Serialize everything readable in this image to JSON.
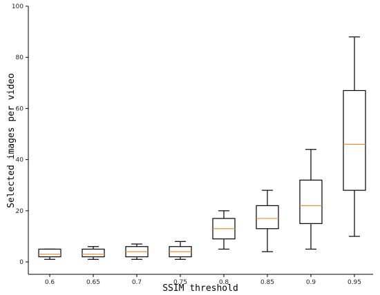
{
  "chart_data": {
    "type": "boxplot",
    "title": "",
    "xlabel": "SSIM threshold",
    "ylabel": "Selected images per video",
    "ylim": [
      0,
      100
    ],
    "yticks": [
      0,
      20,
      40,
      60,
      80,
      100
    ],
    "grid": false,
    "median_color": "#f28e2b",
    "categories": [
      "0.6",
      "0.65",
      "0.7",
      "0.75",
      "0.8",
      "0.85",
      "0.9",
      "0.95"
    ],
    "boxes": [
      {
        "label": "0.6",
        "whisker_low": 1,
        "q1": 2,
        "median": 3,
        "q3": 5,
        "whisker_high": 5
      },
      {
        "label": "0.65",
        "whisker_low": 1,
        "q1": 2,
        "median": 3,
        "q3": 5,
        "whisker_high": 6
      },
      {
        "label": "0.7",
        "whisker_low": 1,
        "q1": 2,
        "median": 4,
        "q3": 6,
        "whisker_high": 7
      },
      {
        "label": "0.75",
        "whisker_low": 1,
        "q1": 2,
        "median": 4,
        "q3": 6,
        "whisker_high": 8
      },
      {
        "label": "0.8",
        "whisker_low": 5,
        "q1": 9,
        "median": 13,
        "q3": 17,
        "whisker_high": 20
      },
      {
        "label": "0.85",
        "whisker_low": 4,
        "q1": 13,
        "median": 17,
        "q3": 22,
        "whisker_high": 28
      },
      {
        "label": "0.9",
        "whisker_low": 5,
        "q1": 15,
        "median": 22,
        "q3": 32,
        "whisker_high": 44
      },
      {
        "label": "0.95",
        "whisker_low": 10,
        "q1": 28,
        "median": 46,
        "q3": 67,
        "whisker_high": 88
      }
    ]
  }
}
